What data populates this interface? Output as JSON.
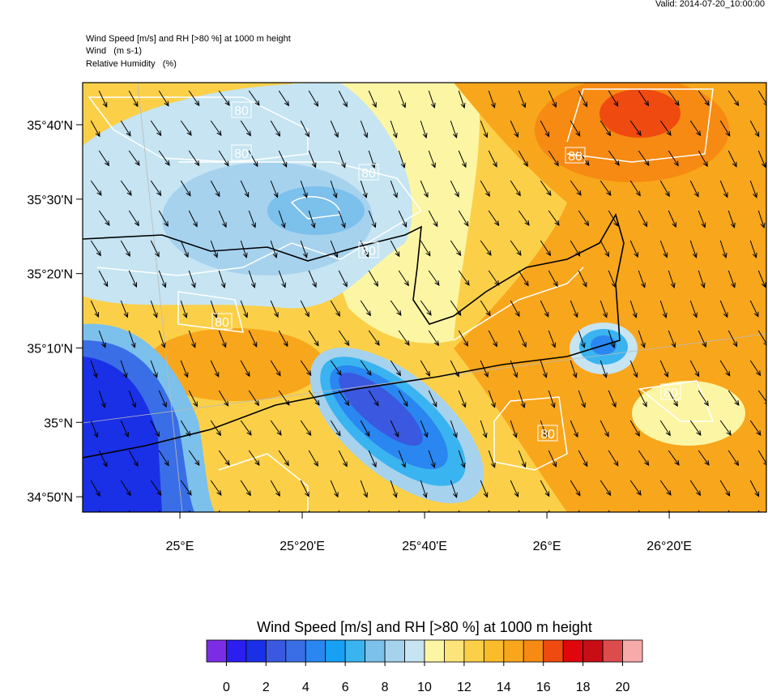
{
  "valid": "Valid: 2014-07-20_10:00:00",
  "header": {
    "title": "Wind Speed [m/s] and RH [>80 %] at 1000 m height",
    "wind": "Wind   (m s-1)",
    "rh": "Relative Humidity   (%)"
  },
  "map": {
    "xlim": [
      24.735,
      26.598
    ],
    "ylim": [
      34.799,
      35.761
    ],
    "lat_ticks": [
      {
        "value": 35.6667,
        "label": "35°40'N"
      },
      {
        "value": 35.5,
        "label": "35°30'N"
      },
      {
        "value": 35.3333,
        "label": "35°20'N"
      },
      {
        "value": 35.1667,
        "label": "35°10'N"
      },
      {
        "value": 35,
        "label": "35°N"
      },
      {
        "value": 34.8333,
        "label": "34°50'N"
      }
    ],
    "lon_ticks": [
      {
        "value": 25,
        "label": "25°E"
      },
      {
        "value": 25.3333,
        "label": "25°20'E"
      },
      {
        "value": 25.6667,
        "label": "25°40'E"
      },
      {
        "value": 26,
        "label": "26°E"
      },
      {
        "value": 26.3333,
        "label": "26°20'E"
      }
    ],
    "contour_labels": [
      "80",
      "80",
      "80",
      "80",
      "80",
      "80",
      "80",
      "80"
    ]
  },
  "colorbar": {
    "title": "Wind Speed [m/s] and RH [>80 %] at 1000 m height",
    "range": [
      -1,
      21
    ],
    "colors": [
      "#7b2de6",
      "#2a1ef0",
      "#1a30e6",
      "#3a58e0",
      "#3a6ee6",
      "#2a86f0",
      "#18a0f4",
      "#3ab4f0",
      "#7cc0ec",
      "#a6d2ee",
      "#c6e4f2",
      "#fcf6a4",
      "#fce47a",
      "#fbd048",
      "#fabc2a",
      "#f8a61c",
      "#f68a12",
      "#ef4a10",
      "#e0070c",
      "#c80e14",
      "#dd4c4c",
      "#f7aaaa"
    ],
    "ticks": [
      0,
      2,
      4,
      6,
      8,
      10,
      12,
      14,
      16,
      18,
      20
    ]
  }
}
